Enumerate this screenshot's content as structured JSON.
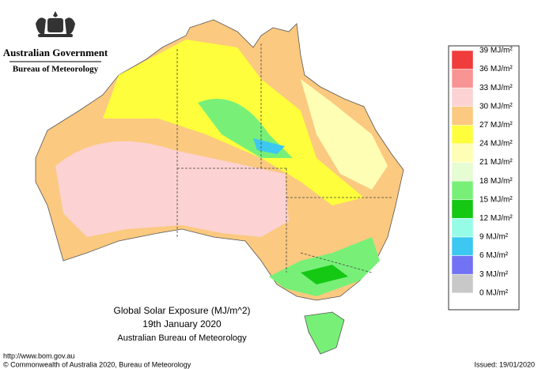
{
  "header": {
    "government": "Australian Government",
    "bureau": "Bureau of Meteorology"
  },
  "title": {
    "line1": "Global Solar Exposure (MJ/m^2)",
    "line2": "19th January 2020",
    "line3": "Australian Bureau of Meteorology"
  },
  "legend": [
    {
      "label": "39 MJ/m²",
      "color": "#f03c3c"
    },
    {
      "label": "36 MJ/m²",
      "color": "#f89494"
    },
    {
      "label": "33 MJ/m²",
      "color": "#fcd2d2"
    },
    {
      "label": "30 MJ/m²",
      "color": "#fbc97f"
    },
    {
      "label": "27 MJ/m²",
      "color": "#fefe3c"
    },
    {
      "label": "24 MJ/m²",
      "color": "#fefeb4"
    },
    {
      "label": "21 MJ/m²",
      "color": "#e6fcd2"
    },
    {
      "label": "18 MJ/m²",
      "color": "#78f078"
    },
    {
      "label": "15 MJ/m²",
      "color": "#14c814"
    },
    {
      "label": "12 MJ/m²",
      "color": "#96fce6"
    },
    {
      "label": "9 MJ/m²",
      "color": "#3cc8f0"
    },
    {
      "label": "6 MJ/m²",
      "color": "#7272f4"
    },
    {
      "label": "3 MJ/m²",
      "color": "#c8c8c8"
    }
  ],
  "extra_label": "0 MJ/m²",
  "footer": {
    "url": "http://www.bom.gov.au",
    "copyright": "© Commonwealth of Australia 2020, Bureau of Meteorology",
    "issued": "Issued: 19/01/2020"
  }
}
